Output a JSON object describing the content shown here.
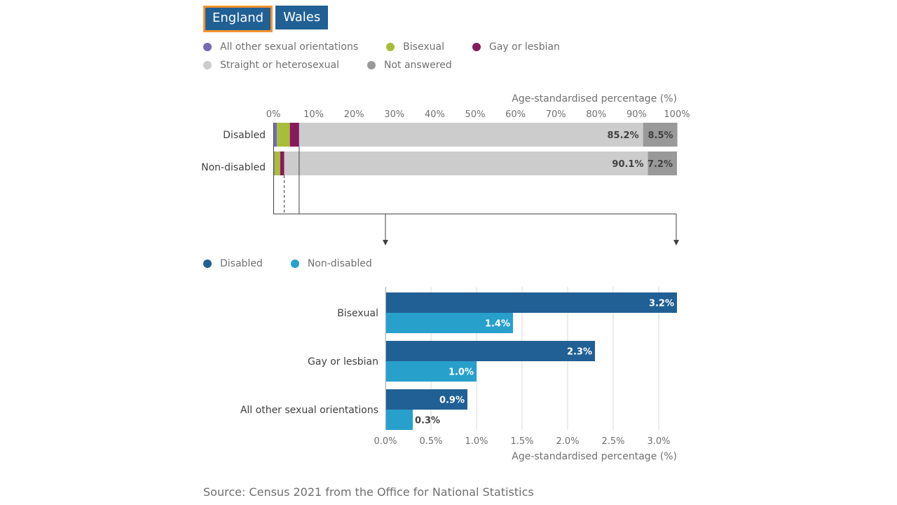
{
  "tabs": [
    {
      "label": "England",
      "active": true
    },
    {
      "label": "Wales",
      "active": false
    }
  ],
  "legend_top": {
    "row1": [
      {
        "label": "All other sexual orientations",
        "color": "#746cb1"
      },
      {
        "label": "Bisexual",
        "color": "#a8bd3a"
      },
      {
        "label": "Gay or lesbian",
        "color": "#871a5b"
      }
    ],
    "row2": [
      {
        "label": "Straight or heterosexual",
        "color": "#cccccc"
      },
      {
        "label": "Not answered",
        "color": "#999999"
      }
    ]
  },
  "legend_bottom": [
    {
      "label": "Disabled",
      "color": "#206095"
    },
    {
      "label": "Non-disabled",
      "color": "#27a0cc"
    }
  ],
  "source": "Source: Census 2021 from the Office for National Statistics",
  "chart_data": [
    {
      "type": "bar",
      "orientation": "horizontal",
      "stacked": true,
      "xlabel": "Age-standardised percentage (%)",
      "xlim": [
        0,
        100
      ],
      "ticks": [
        "0%",
        "10%",
        "20%",
        "30%",
        "40%",
        "50%",
        "60%",
        "70%",
        "80%",
        "90%",
        "100%"
      ],
      "categories": [
        "Disabled",
        "Non-disabled"
      ],
      "series": [
        {
          "name": "All other sexual orientations",
          "color": "#746cb1",
          "values": [
            0.9,
            0.3
          ]
        },
        {
          "name": "Bisexual",
          "color": "#a8bd3a",
          "values": [
            3.2,
            1.4
          ]
        },
        {
          "name": "Gay or lesbian",
          "color": "#871a5b",
          "values": [
            2.3,
            1.0
          ]
        },
        {
          "name": "Straight or heterosexual",
          "color": "#cccccc",
          "values": [
            85.2,
            90.1
          ],
          "labels": [
            "85.2%",
            "90.1%"
          ]
        },
        {
          "name": "Not answered",
          "color": "#999999",
          "values": [
            8.5,
            7.2
          ],
          "labels": [
            "8.5%",
            "7.2%"
          ]
        }
      ]
    },
    {
      "type": "bar",
      "orientation": "horizontal",
      "xlabel": "Age-standardised percentage (%)",
      "xlim": [
        0,
        3.2
      ],
      "ticks": [
        "0.0%",
        "0.5%",
        "1.0%",
        "1.5%",
        "2.0%",
        "2.5%",
        "3.0%"
      ],
      "categories": [
        "Bisexual",
        "Gay or lesbian",
        "All other sexual orientations"
      ],
      "series": [
        {
          "name": "Disabled",
          "color": "#206095",
          "values": [
            3.2,
            2.3,
            0.9
          ],
          "labels": [
            "3.2%",
            "2.3%",
            "0.9%"
          ]
        },
        {
          "name": "Non-disabled",
          "color": "#27a0cc",
          "values": [
            1.4,
            1.0,
            0.3
          ],
          "labels": [
            "1.4%",
            "1.0%",
            "0.3%"
          ]
        }
      ]
    }
  ]
}
